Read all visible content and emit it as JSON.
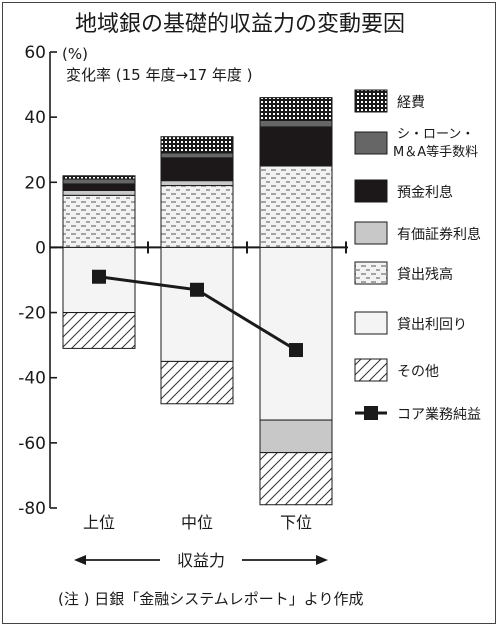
{
  "chart_data": {
    "type": "bar",
    "title": "地域銀の基礎的収益力の変動要因",
    "ylabel_unit": "(%)",
    "subtitle": "変化率 (15 年度→17 年度 )",
    "ylim": [
      -80,
      60
    ],
    "yticks": [
      "60",
      "40",
      "20",
      "0",
      "-20",
      "-40",
      "-60",
      "-80"
    ],
    "categories": [
      "上位",
      "中位",
      "下位"
    ],
    "stack_order_positive": [
      "貸出残高",
      "有価証券利息",
      "預金利息",
      "シ・ローン・M＆A等手数料",
      "経費"
    ],
    "stack_order_negative": [
      "貸出利回り",
      "有価証券利息",
      "その他"
    ],
    "series": [
      {
        "name": "経費",
        "values": [
          1,
          5,
          7
        ]
      },
      {
        "name": "シ・ローン・M＆A等手数料",
        "values": [
          1.5,
          1.5,
          2
        ]
      },
      {
        "name": "預金利息",
        "values": [
          2,
          7,
          12
        ]
      },
      {
        "name": "有価証券利息",
        "values": [
          1.5,
          1.5,
          -10
        ]
      },
      {
        "name": "貸出残高",
        "values": [
          16,
          19,
          25
        ]
      },
      {
        "name": "貸出利回り",
        "values": [
          -20,
          -35,
          -53
        ]
      },
      {
        "name": "その他",
        "values": [
          -11,
          -13,
          -16
        ]
      }
    ],
    "line_series": {
      "name": "コア業務純益",
      "values": [
        -9,
        -13,
        -31.5
      ]
    },
    "xaxis_note": "収益力",
    "legend_position": "right",
    "note": "(注 ) 日銀「金融システムレポート」より作成"
  },
  "colors": {
    "経費": "#1a1a1a",
    "シ・ローン・M＆A等手数料": "#666666",
    "預金利息": "#1c1718",
    "有価証券利息": "#c8c8c8",
    "貸出残高": "#f2f2f2",
    "貸出利回り": "#f4f4f4",
    "その他": "#ffffff",
    "コア業務純益": "#1a1a1a"
  },
  "legend": [
    {
      "name": "経費",
      "label1": "経費",
      "label2": ""
    },
    {
      "name": "シ・ローン・M＆A等手数料",
      "label1": "シ・ローン・",
      "label2": "M＆A等手数料"
    },
    {
      "name": "預金利息",
      "label1": "預金利息",
      "label2": ""
    },
    {
      "name": "有価証券利息",
      "label1": "有価証券利息",
      "label2": ""
    },
    {
      "name": "貸出残高",
      "label1": "貸出残高",
      "label2": ""
    },
    {
      "name": "貸出利回り",
      "label1": "貸出利回り",
      "label2": ""
    },
    {
      "name": "その他",
      "label1": "その他",
      "label2": ""
    },
    {
      "name": "コア業務純益",
      "label1": "コア業務純益",
      "label2": ""
    }
  ]
}
